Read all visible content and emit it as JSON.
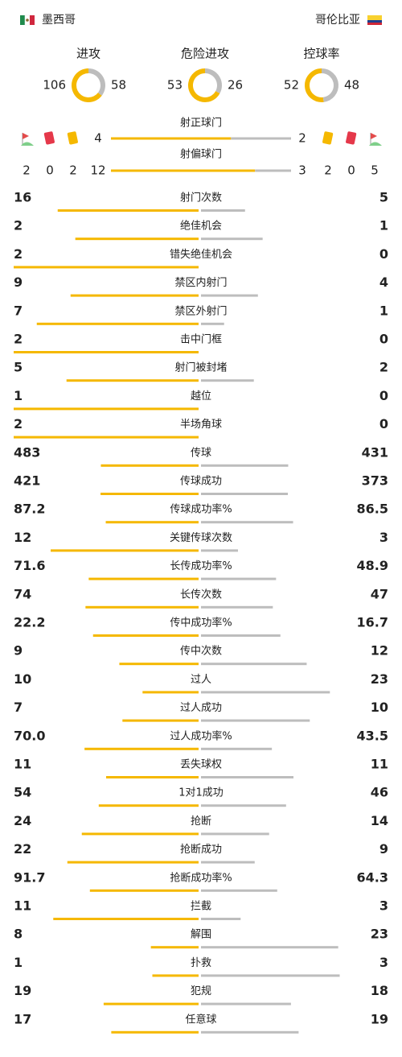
{
  "header": {
    "home": "墨西哥",
    "away": "哥伦比亚"
  },
  "summary": [
    {
      "label": "进攻",
      "home": 106,
      "away": 58
    },
    {
      "label": "危险进攻",
      "home": 53,
      "away": 26
    },
    {
      "label": "控球率",
      "home": 52,
      "away": 48
    }
  ],
  "events": {
    "home": {
      "corners": 2,
      "red_cards": 0,
      "yellow_cards": 2
    },
    "away": {
      "yellow_cards": 2,
      "red_cards": 0,
      "corners": 5
    }
  },
  "shots": [
    {
      "label": "射正球门",
      "home": 4,
      "away": 2
    },
    {
      "label": "射偏球门",
      "home": 12,
      "away": 3
    }
  ],
  "stats": [
    {
      "label": "射门次数",
      "home": 16,
      "away": 5
    },
    {
      "label": "绝佳机会",
      "home": 2,
      "away": 1
    },
    {
      "label": "错失绝佳机会",
      "home": 2,
      "away": 0
    },
    {
      "label": "禁区内射门",
      "home": 9,
      "away": 4
    },
    {
      "label": "禁区外射门",
      "home": 7,
      "away": 1
    },
    {
      "label": "击中门框",
      "home": 2,
      "away": 0
    },
    {
      "label": "射门被封堵",
      "home": 5,
      "away": 2
    },
    {
      "label": "越位",
      "home": 1,
      "away": 0
    },
    {
      "label": "半场角球",
      "home": 2,
      "away": 0
    },
    {
      "label": "传球",
      "home": 483,
      "away": 431
    },
    {
      "label": "传球成功",
      "home": 421,
      "away": 373
    },
    {
      "label": "传球成功率%",
      "home": 87.2,
      "away": 86.5
    },
    {
      "label": "关键传球次数",
      "home": 12,
      "away": 3
    },
    {
      "label": "长传成功率%",
      "home": 71.6,
      "away": 48.9
    },
    {
      "label": "长传次数",
      "home": 74,
      "away": 47
    },
    {
      "label": "传中成功率%",
      "home": 22.2,
      "away": 16.7
    },
    {
      "label": "传中次数",
      "home": 9,
      "away": 12
    },
    {
      "label": "过人",
      "home": 10,
      "away": 23
    },
    {
      "label": "过人成功",
      "home": 7,
      "away": 10
    },
    {
      "label": "过人成功率%",
      "home": 70,
      "home_label": "70.0",
      "away": 43.5
    },
    {
      "label": "丢失球权",
      "home": 11,
      "away": 11
    },
    {
      "label": "1对1成功",
      "home": 54,
      "away": 46
    },
    {
      "label": "抢断",
      "home": 24,
      "away": 14
    },
    {
      "label": "抢断成功",
      "home": 22,
      "away": 9
    },
    {
      "label": "抢断成功率%",
      "home": 91.7,
      "away": 64.3
    },
    {
      "label": "拦截",
      "home": 11,
      "away": 3
    },
    {
      "label": "解围",
      "home": 8,
      "away": 23
    },
    {
      "label": "扑救",
      "home": 1,
      "away": 3
    },
    {
      "label": "犯规",
      "home": 19,
      "away": 18
    },
    {
      "label": "任意球",
      "home": 17,
      "away": 19
    }
  ]
}
